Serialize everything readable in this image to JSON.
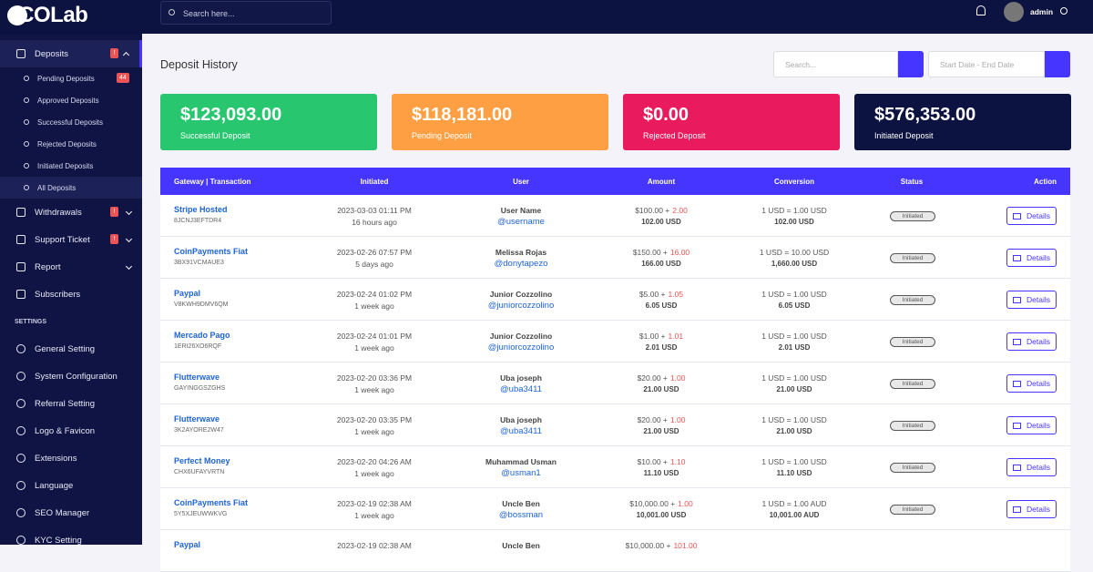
{
  "brand": "ICOLab",
  "topbar": {
    "search_placeholder": "Search here...",
    "user": "admin"
  },
  "sidebar": {
    "menu": [
      {
        "label": "Deposits",
        "badge": "!",
        "children": [
          {
            "label": "Pending Deposits",
            "badge": "44"
          },
          {
            "label": "Approved Deposits"
          },
          {
            "label": "Successful Deposits"
          },
          {
            "label": "Rejected Deposits"
          },
          {
            "label": "Initiated Deposits"
          },
          {
            "label": "All Deposits"
          }
        ]
      },
      {
        "label": "Withdrawals",
        "badge": "!"
      },
      {
        "label": "Support Ticket",
        "badge": "!"
      },
      {
        "label": "Report"
      },
      {
        "label": "Subscribers"
      }
    ],
    "section": "SETTINGS",
    "settings": [
      "General Setting",
      "System Configuration",
      "Referral Setting",
      "Logo & Favicon",
      "Extensions",
      "Language",
      "SEO Manager",
      "KYC Setting"
    ]
  },
  "page": {
    "title": "Deposit History",
    "search_placeholder": "Search...",
    "date_placeholder": "Start Date - End Date"
  },
  "cards": [
    {
      "amount": "$123,093.00",
      "label": "Successful Deposit"
    },
    {
      "amount": "$118,181.00",
      "label": "Pending Deposit"
    },
    {
      "amount": "$0.00",
      "label": "Rejected Deposit"
    },
    {
      "amount": "$576,353.00",
      "label": "Initiated Deposit"
    }
  ],
  "table": {
    "columns": [
      "Gateway | Transaction",
      "Initiated",
      "User",
      "Amount",
      "Conversion",
      "Status",
      "Action"
    ],
    "rows": [
      {
        "gateway": "Stripe Hosted",
        "trx": "8JCNJ3EFTDR4",
        "date": "2023-03-03 01:11 PM",
        "ago": "16 hours ago",
        "name": "User Name",
        "username": "@username",
        "amount": "$100.00 +",
        "charge": "2.00",
        "total": "102.00 USD",
        "rate": "1 USD = 1.00 USD",
        "converted": "102.00 USD",
        "status": "Initiated",
        "action": "Details"
      },
      {
        "gateway": "CoinPayments Fiat",
        "trx": "3BX91VCMAUE3",
        "date": "2023-02-26 07:57 PM",
        "ago": "5 days ago",
        "name": "Melissa Rojas",
        "username": "@donytapezo",
        "amount": "$150.00 +",
        "charge": "16.00",
        "total": "166.00 USD",
        "rate": "1 USD = 10.00 USD",
        "converted": "1,660.00 USD",
        "status": "Initiated",
        "action": "Details"
      },
      {
        "gateway": "Paypal",
        "trx": "V8KWH9DMV6QM",
        "date": "2023-02-24 01:02 PM",
        "ago": "1 week ago",
        "name": "Junior Cozzolino",
        "username": "@juniorcozzolino",
        "amount": "$5.00 +",
        "charge": "1.05",
        "total": "6.05 USD",
        "rate": "1 USD = 1.00 USD",
        "converted": "6.05 USD",
        "status": "Initiated",
        "action": "Details"
      },
      {
        "gateway": "Mercado Pago",
        "trx": "1ERI26XO6RQF",
        "date": "2023-02-24 01:01 PM",
        "ago": "1 week ago",
        "name": "Junior Cozzolino",
        "username": "@juniorcozzolino",
        "amount": "$1.00 +",
        "charge": "1.01",
        "total": "2.01 USD",
        "rate": "1 USD = 1.00 USD",
        "converted": "2.01 USD",
        "status": "Initiated",
        "action": "Details"
      },
      {
        "gateway": "Flutterwave",
        "trx": "GAYINGGSZGHS",
        "date": "2023-02-20 03:36 PM",
        "ago": "1 week ago",
        "name": "Uba joseph",
        "username": "@uba3411",
        "amount": "$20.00 +",
        "charge": "1.00",
        "total": "21.00 USD",
        "rate": "1 USD = 1.00 USD",
        "converted": "21.00 USD",
        "status": "Initiated",
        "action": "Details"
      },
      {
        "gateway": "Flutterwave",
        "trx": "3K2AYORE2W47",
        "date": "2023-02-20 03:35 PM",
        "ago": "1 week ago",
        "name": "Uba joseph",
        "username": "@uba3411",
        "amount": "$20.00 +",
        "charge": "1.00",
        "total": "21.00 USD",
        "rate": "1 USD = 1.00 USD",
        "converted": "21.00 USD",
        "status": "Initiated",
        "action": "Details"
      },
      {
        "gateway": "Perfect Money",
        "trx": "CHX6UFAYVRTN",
        "date": "2023-02-20 04:26 AM",
        "ago": "1 week ago",
        "name": "Muhammad Usman",
        "username": "@usman1",
        "amount": "$10.00 +",
        "charge": "1.10",
        "total": "11.10 USD",
        "rate": "1 USD = 1.00 USD",
        "converted": "11.10 USD",
        "status": "Initiated",
        "action": "Details"
      },
      {
        "gateway": "CoinPayments Fiat",
        "trx": "5Y5XJEUWWKVG",
        "date": "2023-02-19 02:38 AM",
        "ago": "1 week ago",
        "name": "Uncle Ben",
        "username": "@bossman",
        "amount": "$10,000.00 +",
        "charge": "1.00",
        "total": "10,001.00 USD",
        "rate": "1 USD = 1.00 AUD",
        "converted": "10,001.00 AUD",
        "status": "Initiated",
        "action": "Details"
      },
      {
        "gateway": "Paypal",
        "date": "2023-02-19 02:38 AM",
        "name": "Uncle Ben",
        "amount": "$10,000.00 +",
        "charge": "101.00"
      }
    ]
  }
}
